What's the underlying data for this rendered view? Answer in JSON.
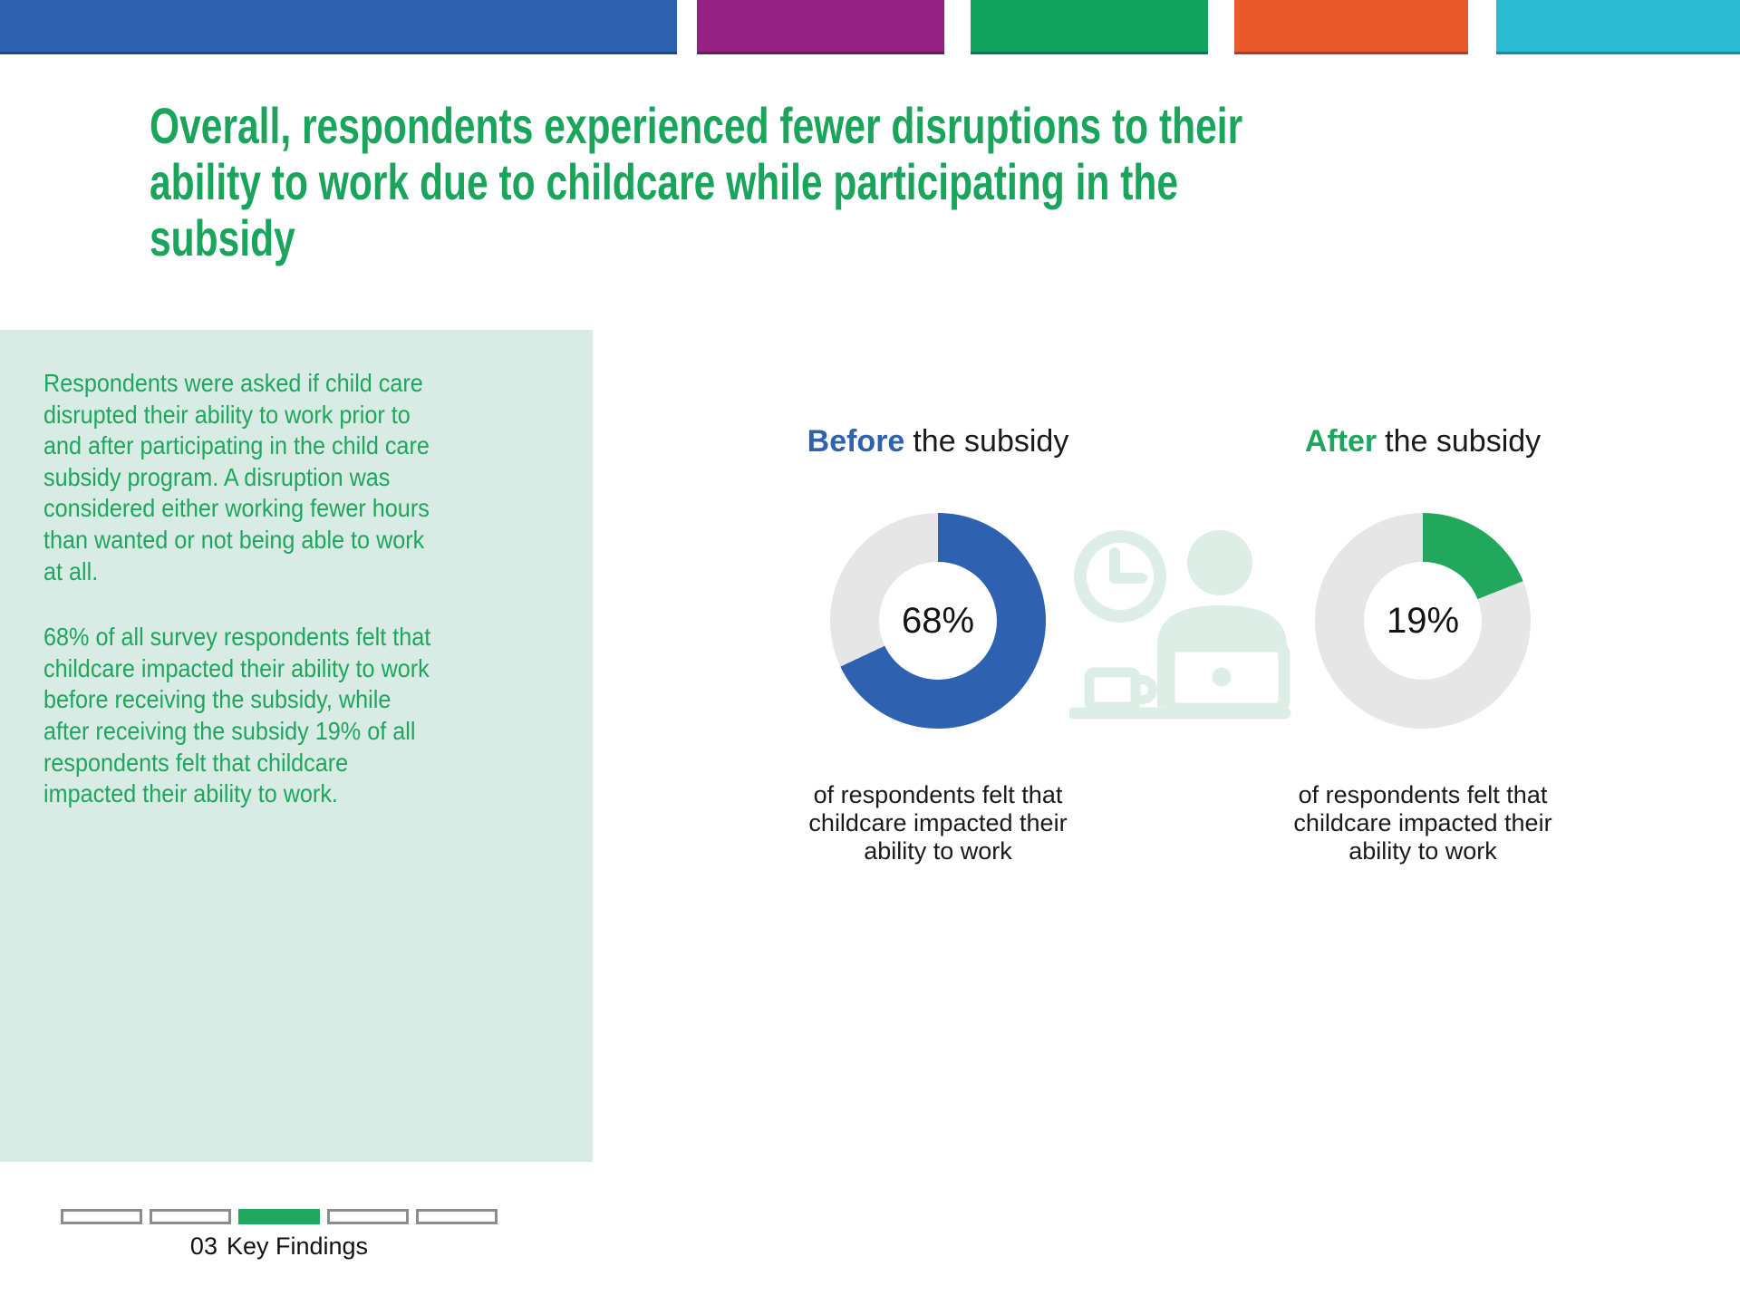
{
  "top_bars": [
    {
      "name": "blue",
      "color": "#2d61b0"
    },
    {
      "name": "purple",
      "color": "#952182"
    },
    {
      "name": "green",
      "color": "#13a360"
    },
    {
      "name": "orange",
      "color": "#e85a2b"
    },
    {
      "name": "cyan",
      "color": "#2bbcd4"
    }
  ],
  "title": {
    "color": "#1aa45c",
    "lines": [
      "Overall, respondents experienced fewer disruptions to their",
      "ability to work due to childcare while participating in the",
      "subsidy"
    ]
  },
  "sidebar": {
    "background": "#d8ebe4",
    "text_color": "#1ea65f",
    "paragraph1_lines": [
      "Respondents were asked if child care",
      "disrupted their ability to work prior to",
      "and after participating in the child care",
      "subsidy program. A disruption was",
      "considered either working fewer hours",
      "than wanted or not being able to work",
      "at all."
    ],
    "paragraph2_lines": [
      "68% of all survey respondents felt that",
      "childcare impacted their ability to work",
      "before receiving the subsidy, while",
      "after receiving the subsidy 19% of all",
      "respondents felt that childcare",
      "impacted their ability to work."
    ]
  },
  "chart_data": [
    {
      "id": "before",
      "type": "donut",
      "label_highlight": "Before",
      "label_rest": "the subsidy",
      "label_highlight_color": "#2e62b1",
      "value": 68,
      "center_label": "68%",
      "segment_color": "#2e62b1",
      "track_color": "#e6e6e6",
      "start_angle": "top, clockwise",
      "caption_lines": [
        "of respondents felt that",
        "childcare impacted their",
        "ability to work"
      ]
    },
    {
      "id": "after",
      "type": "donut",
      "label_highlight": "After",
      "label_rest": "the subsidy",
      "label_highlight_color": "#1ea65f",
      "value": 19,
      "center_label": "19%",
      "segment_color": "#22a85c",
      "track_color": "#e6e6e6",
      "start_angle": "top, clockwise",
      "caption_lines": [
        "of respondents felt that",
        "childcare impacted their",
        "ability to work"
      ]
    }
  ],
  "watermark_icon": {
    "name": "worker-at-laptop-with-clock-and-coffee",
    "color": "#dceee5"
  },
  "footer": {
    "segments_total": 5,
    "active_segment": 3,
    "active_color": "#22a85c",
    "inactive_border_color": "#8c8c8c",
    "page_number": "03",
    "section_label": "Key Findings"
  }
}
